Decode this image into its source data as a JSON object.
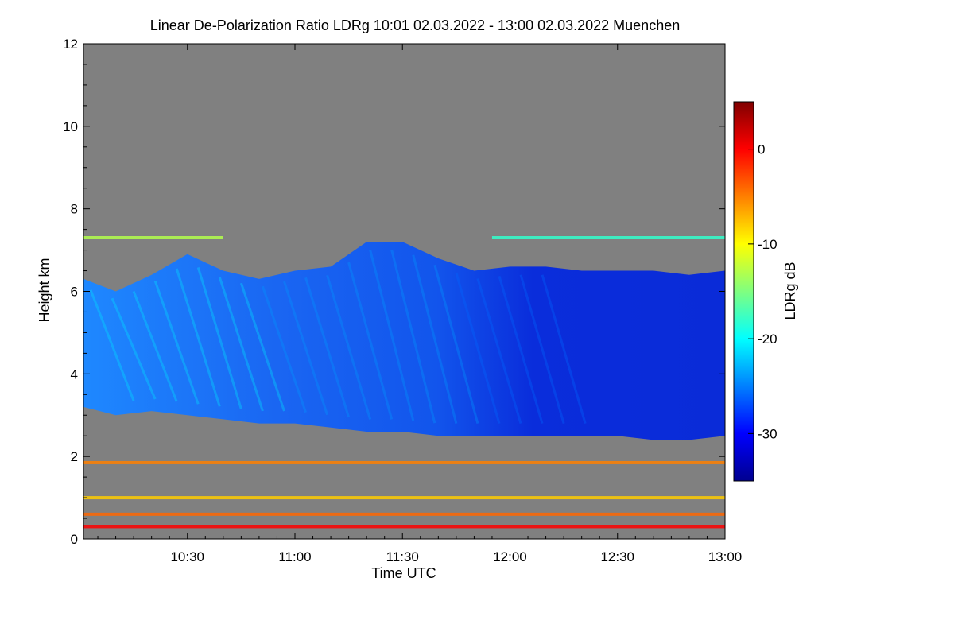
{
  "chart_data": {
    "type": "heatmap",
    "title": "Linear De-Polarization Ratio LDRg   10:01 02.03.2022 - 13:00 02.03.2022 Muenchen",
    "xlabel": "Time UTC",
    "ylabel": "Height km",
    "colorbar_label": "LDRg dB",
    "xlim_minutes": [
      601,
      780
    ],
    "ylim": [
      0,
      12
    ],
    "x_ticks": [
      {
        "minute": 630,
        "label": "10:30"
      },
      {
        "minute": 660,
        "label": "11:00"
      },
      {
        "minute": 690,
        "label": "11:30"
      },
      {
        "minute": 720,
        "label": "12:00"
      },
      {
        "minute": 750,
        "label": "12:30"
      },
      {
        "minute": 780,
        "label": "13:00"
      }
    ],
    "y_ticks": [
      0,
      2,
      4,
      6,
      8,
      10,
      12
    ],
    "colorbar_range": [
      -35,
      5
    ],
    "colorbar_ticks": [
      0,
      -10,
      -20,
      -30
    ],
    "no_signal_color": "#808080",
    "cloud_layer": {
      "description_value_range_db": [
        -33,
        -18
      ],
      "base_km_profile": [
        {
          "minute": 601,
          "base": 3.2,
          "top": 6.3
        },
        {
          "minute": 610,
          "base": 3.0,
          "top": 6.0
        },
        {
          "minute": 620,
          "base": 3.1,
          "top": 6.4
        },
        {
          "minute": 630,
          "base": 3.0,
          "top": 6.9
        },
        {
          "minute": 640,
          "base": 2.9,
          "top": 6.5
        },
        {
          "minute": 650,
          "base": 2.8,
          "top": 6.3
        },
        {
          "minute": 660,
          "base": 2.8,
          "top": 6.5
        },
        {
          "minute": 670,
          "base": 2.7,
          "top": 6.6
        },
        {
          "minute": 680,
          "base": 2.6,
          "top": 7.2
        },
        {
          "minute": 690,
          "base": 2.6,
          "top": 7.2
        },
        {
          "minute": 700,
          "base": 2.5,
          "top": 6.8
        },
        {
          "minute": 710,
          "base": 2.5,
          "top": 6.5
        },
        {
          "minute": 720,
          "base": 2.5,
          "top": 6.6
        },
        {
          "minute": 730,
          "base": 2.5,
          "top": 6.6
        },
        {
          "minute": 740,
          "base": 2.5,
          "top": 6.5
        },
        {
          "minute": 750,
          "base": 2.5,
          "top": 6.5
        },
        {
          "minute": 760,
          "base": 2.4,
          "top": 6.5
        },
        {
          "minute": 770,
          "base": 2.4,
          "top": 6.4
        },
        {
          "minute": 780,
          "base": 2.5,
          "top": 6.5
        }
      ]
    },
    "thin_layers": [
      {
        "height_km": 7.3,
        "minute_start": 601,
        "minute_end": 640,
        "value_db": -13
      },
      {
        "height_km": 7.3,
        "minute_start": 715,
        "minute_end": 780,
        "value_db": -18
      },
      {
        "height_km": 1.85,
        "minute_start": 601,
        "minute_end": 780,
        "value_db": -5
      },
      {
        "height_km": 1.0,
        "minute_start": 601,
        "minute_end": 780,
        "value_db": -8
      },
      {
        "height_km": 0.6,
        "minute_start": 601,
        "minute_end": 780,
        "value_db": -4
      },
      {
        "height_km": 0.3,
        "minute_start": 601,
        "minute_end": 780,
        "value_db": 0
      }
    ]
  }
}
